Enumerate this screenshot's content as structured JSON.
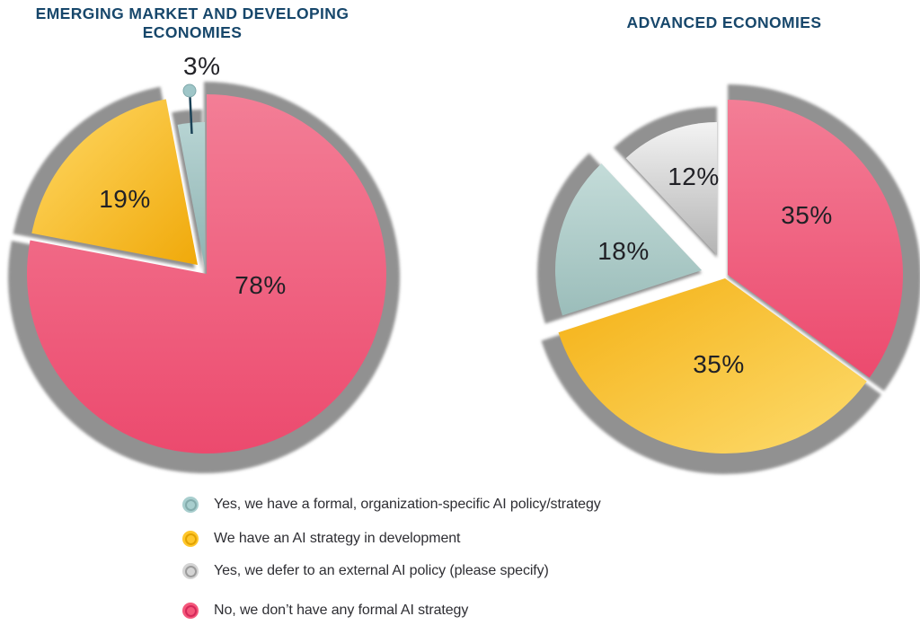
{
  "page": {
    "background": "#FFFFFF"
  },
  "colors": {
    "title": "#17476B",
    "label_text": "#212126",
    "legend_text": "#2E2E33",
    "shadow": "#8D8D8D"
  },
  "chart_data": [
    {
      "type": "pie",
      "title": "EMERGING MARKET AND DEVELOPING ECONOMIES",
      "title_lines": [
        "EMERGING MARKET AND DEVELOPING",
        "ECONOMIES"
      ],
      "unit": "%",
      "values": [
        78,
        19,
        3
      ],
      "labels": [
        "78%",
        "19%",
        "3%"
      ],
      "series": [
        "No, we don’t have any formal AI strategy",
        "We have an AI strategy in development",
        "Yes, we have a formal, organization-specific AI policy/strategy"
      ],
      "slice_fills": [
        {
          "from": "#F37E96",
          "to": "#EC4A6E",
          "dir": "v"
        },
        {
          "from": "#FFD966",
          "to": "#F0A90A",
          "dir": "d"
        },
        {
          "from": "#B7D4D3",
          "to": "#8FB3B2",
          "dir": "v"
        }
      ],
      "callout": {
        "dot_color": "#9FC6C8",
        "dot_ring": "#7FA8AA",
        "line_color": "#1B4257"
      }
    },
    {
      "type": "pie",
      "title": "ADVANCED ECONOMIES",
      "title_lines": [
        "ADVANCED ECONOMIES"
      ],
      "unit": "%",
      "values": [
        35,
        35,
        18,
        12
      ],
      "labels": [
        "35%",
        "35%",
        "18%",
        "12%"
      ],
      "series": [
        "No, we don’t have any formal AI strategy",
        "We have an AI strategy in development",
        "Yes, we have a formal, organization-specific AI policy/strategy",
        "Yes, we defer to an external AI policy (please specify)"
      ],
      "slice_fills": [
        {
          "from": "#F37E96",
          "to": "#EC4A6E",
          "dir": "v"
        },
        {
          "from": "#F4B014",
          "to": "#FDDC6E",
          "dir": "d"
        },
        {
          "from": "#C4DCD9",
          "to": "#9BBDBA",
          "dir": "v"
        },
        {
          "from": "#F3F3F3",
          "to": "#B4B4B4",
          "dir": "v"
        }
      ]
    }
  ],
  "legend": {
    "position": "bottom-center",
    "items": [
      {
        "text": "Yes, we have a formal, organization-specific AI policy/strategy",
        "color": "#A8CECE",
        "ring": "#84ACAC"
      },
      {
        "text": "We have an AI strategy in development",
        "color": "#FFC72C",
        "ring": "#E1A303"
      },
      {
        "text": "Yes, we defer to an external AI policy (please specify)",
        "color": "#D4D4D4",
        "ring": "#9C9C9C"
      },
      {
        "text": "No, we don’t have any formal AI strategy",
        "color": "#F4587B",
        "ring": "#D5285A"
      }
    ]
  }
}
